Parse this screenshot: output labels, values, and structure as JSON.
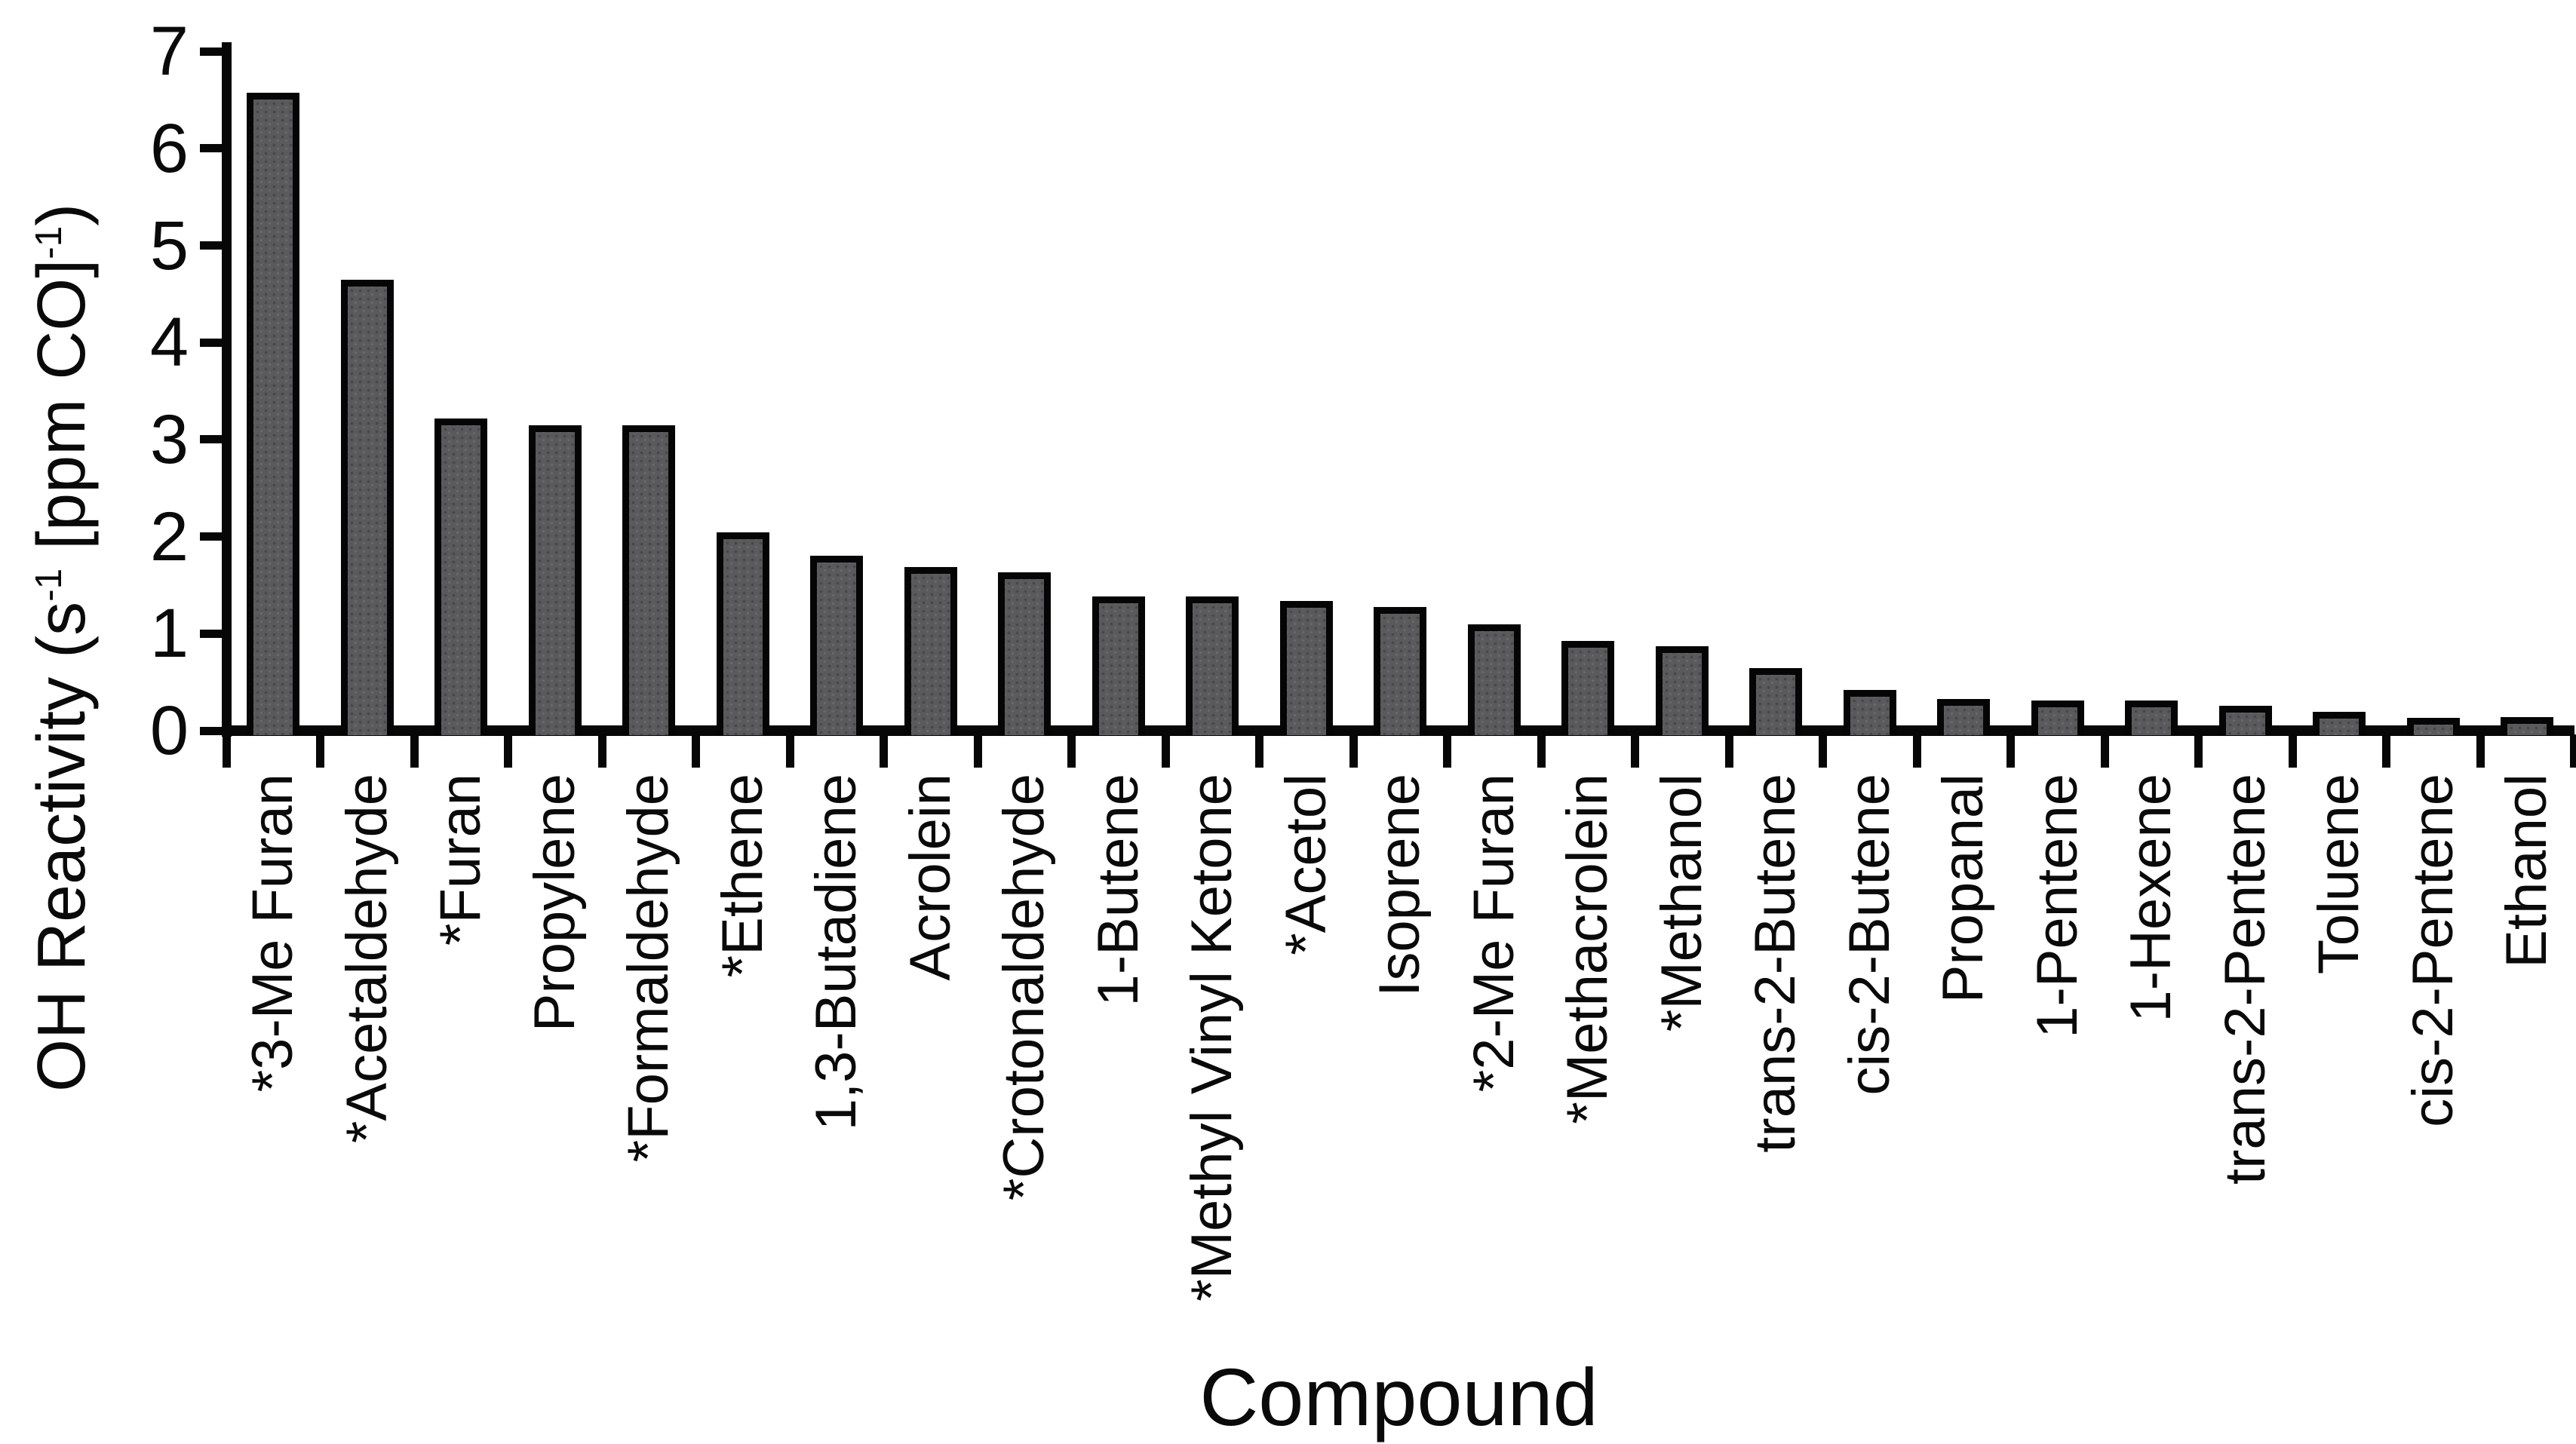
{
  "chart_data": {
    "type": "bar",
    "title": "",
    "xlabel": "Compound",
    "ylabel": "OH Reactivity (s-1 [ppm CO]-1)",
    "ylabel_rich": [
      {
        "t": "OH Reactivity (s",
        "sup": false
      },
      {
        "t": "-1",
        "sup": true
      },
      {
        "t": " [ppm CO]",
        "sup": false
      },
      {
        "t": "-1",
        "sup": true
      },
      {
        "t": ")",
        "sup": false
      }
    ],
    "categories": [
      "*3-Me Furan",
      "*Acetaldehyde",
      "*Furan",
      "Propylene",
      "*Formaldehyde",
      "*Ethene",
      "1,3-Butadiene",
      "Acrolein",
      "*Crotonaldehyde",
      "1-Butene",
      "*Methyl Vinyl Ketone",
      "*Acetol",
      "Isoprene",
      "*2-Me Furan",
      "*Methacrolein",
      "*Methanol",
      "trans-2-Butene",
      "cis-2-Butene",
      "Propanal",
      "1-Pentene",
      "1-Hexene",
      "trans-2-Pentene",
      "Toluene",
      "cis-2-Pentene",
      "Ethanol"
    ],
    "values": [
      6.55,
      4.62,
      3.19,
      3.12,
      3.12,
      2.02,
      1.78,
      1.66,
      1.61,
      1.36,
      1.36,
      1.31,
      1.25,
      1.07,
      0.9,
      0.85,
      0.62,
      0.4,
      0.3,
      0.29,
      0.29,
      0.23,
      0.17,
      0.11,
      0.12
    ],
    "ylim": [
      0,
      7
    ],
    "yticks": [
      0,
      1,
      2,
      3,
      4,
      5,
      6,
      7
    ],
    "grid": false,
    "legend": null,
    "bar_fill_color": "#5a5a5c",
    "bar_edge_color": "#050505",
    "text_color": "#0a0a0a",
    "background_color": "#ffffff"
  }
}
